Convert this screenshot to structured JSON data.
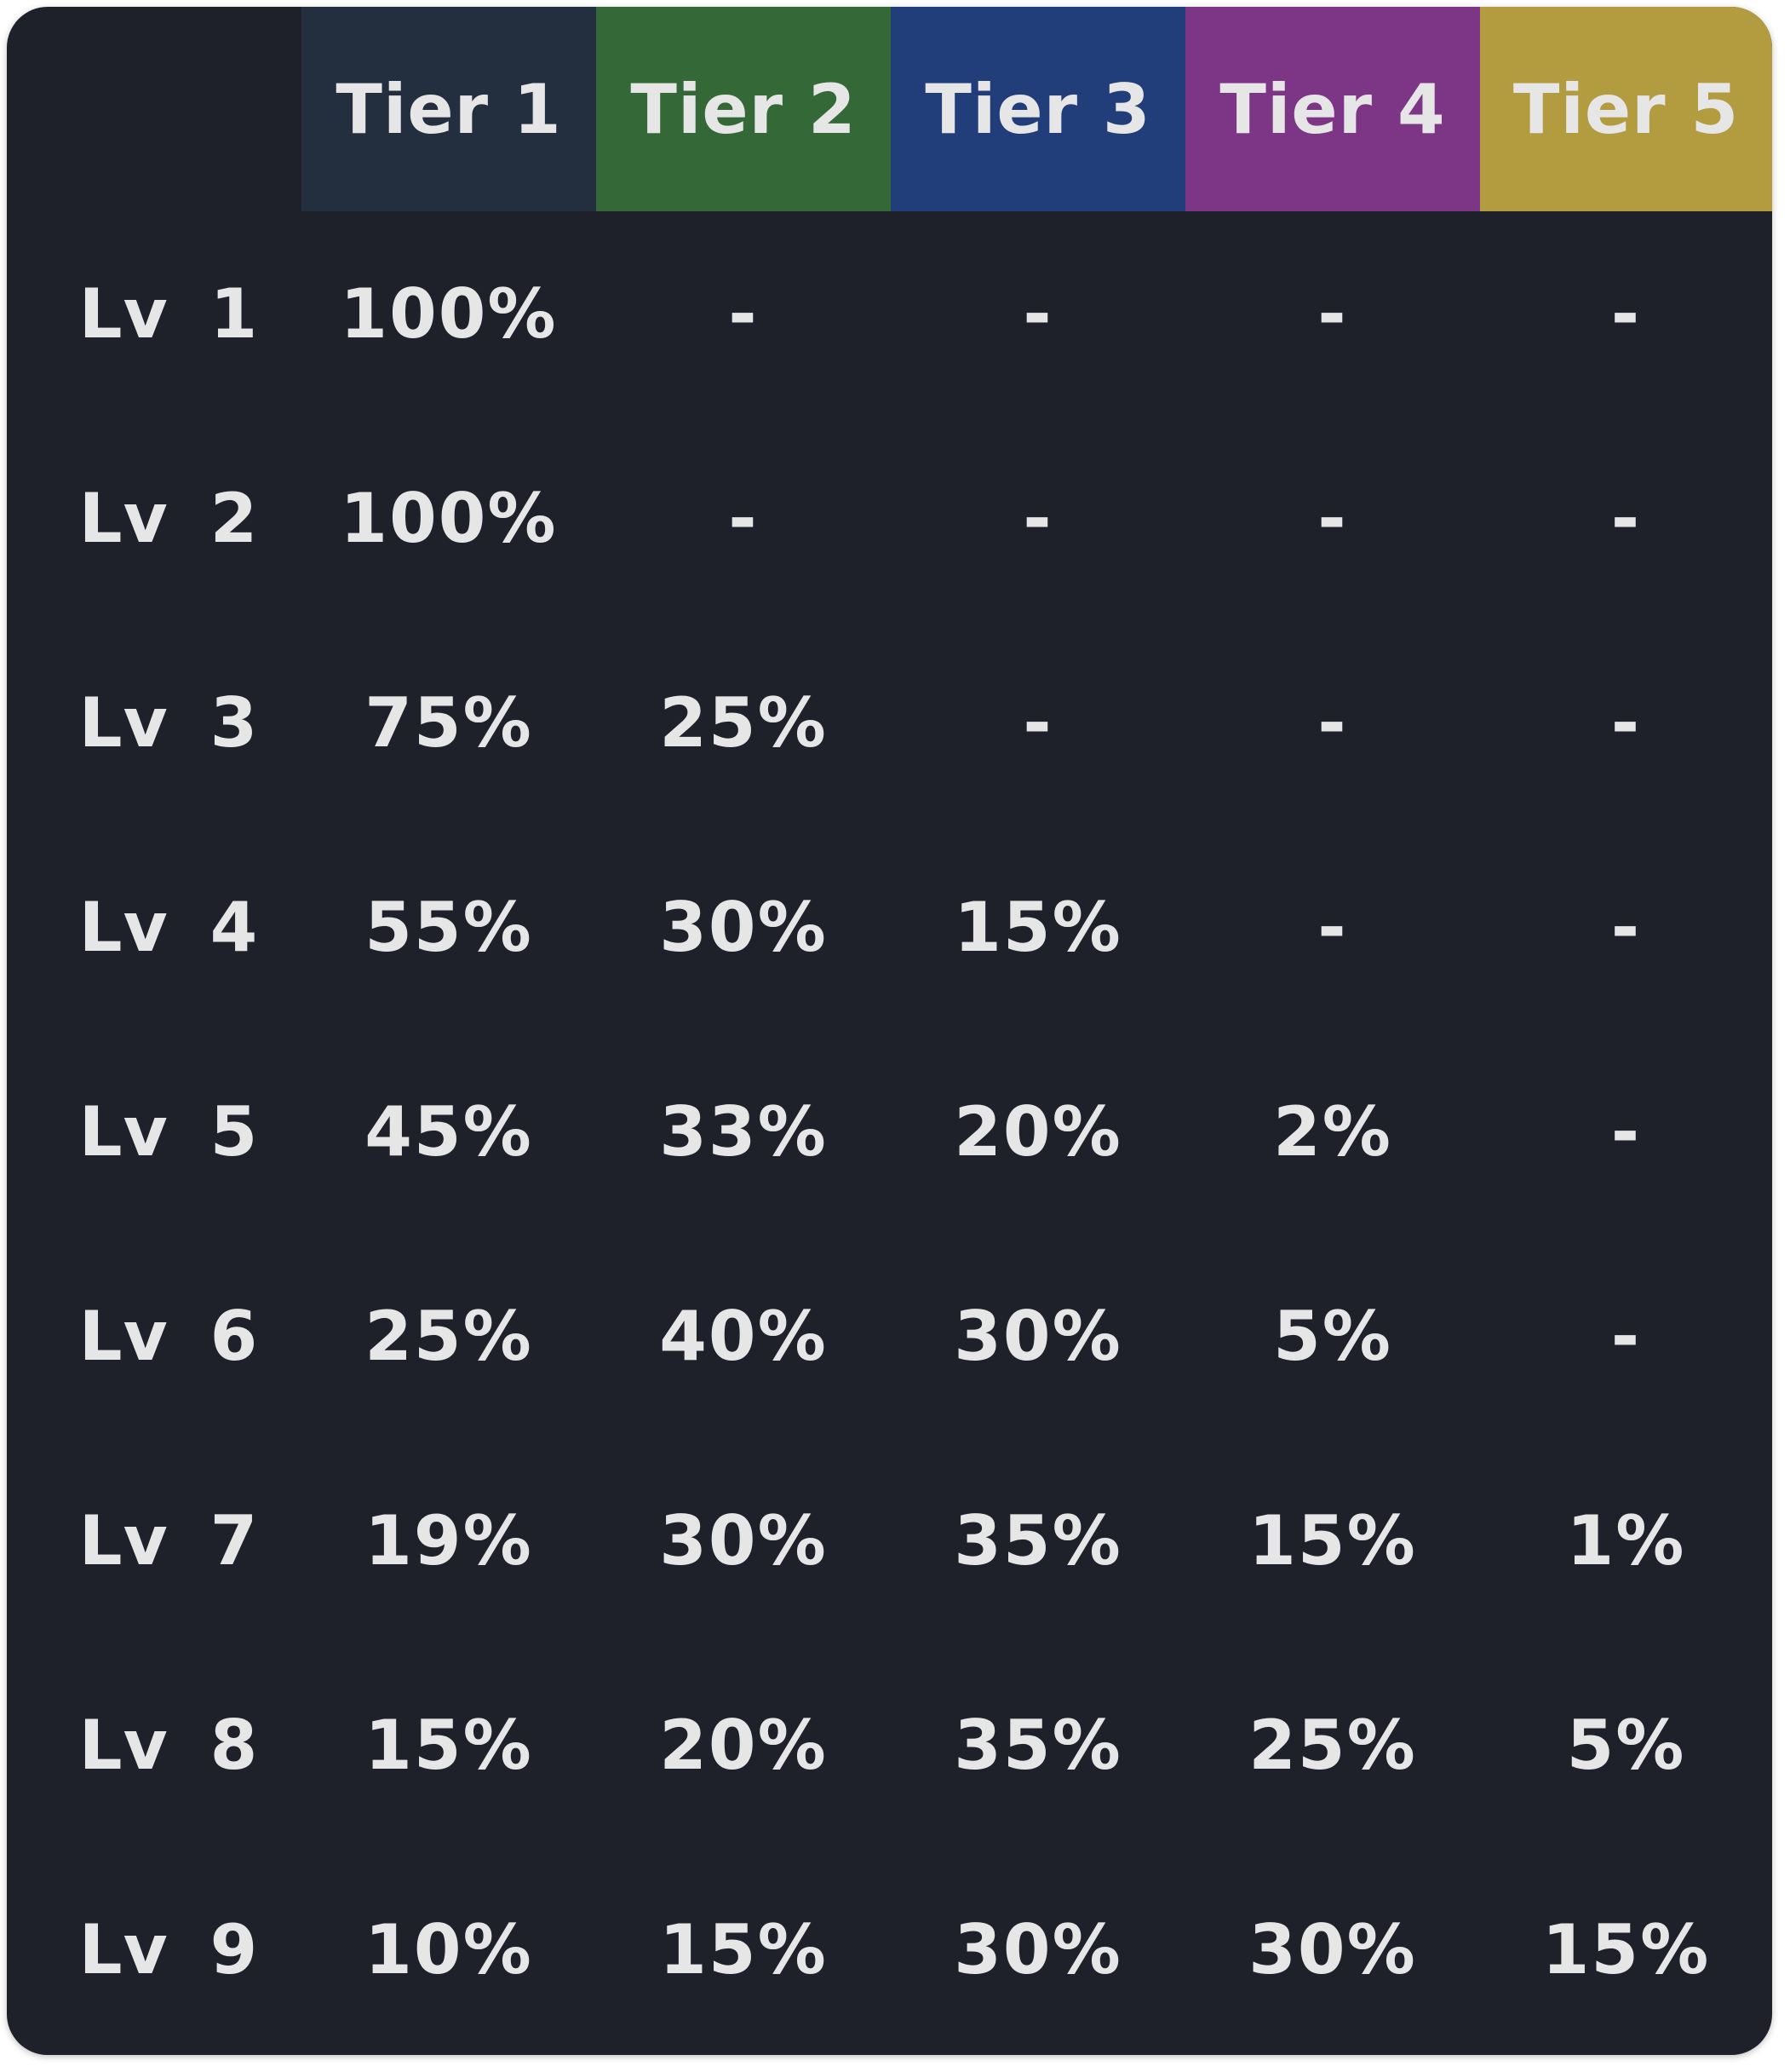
{
  "colors": {
    "background": "#1e202a",
    "tier1": "#232e3f",
    "tier2": "#346937",
    "tier3": "#223e7a",
    "tier4": "#7d3685",
    "tier5": "#b39c3f",
    "text": "#e6e6e6"
  },
  "table": {
    "headers": [
      "Tier 1",
      "Tier 2",
      "Tier 3",
      "Tier 4",
      "Tier 5"
    ],
    "rows": [
      {
        "level": "Lv 1",
        "cells": [
          "100%",
          "-",
          "-",
          "-",
          "-"
        ]
      },
      {
        "level": "Lv 2",
        "cells": [
          "100%",
          "-",
          "-",
          "-",
          "-"
        ]
      },
      {
        "level": "Lv 3",
        "cells": [
          "75%",
          "25%",
          "-",
          "-",
          "-"
        ]
      },
      {
        "level": "Lv 4",
        "cells": [
          "55%",
          "30%",
          "15%",
          "-",
          "-"
        ]
      },
      {
        "level": "Lv 5",
        "cells": [
          "45%",
          "33%",
          "20%",
          "2%",
          "-"
        ]
      },
      {
        "level": "Lv 6",
        "cells": [
          "25%",
          "40%",
          "30%",
          "5%",
          "-"
        ]
      },
      {
        "level": "Lv 7",
        "cells": [
          "19%",
          "30%",
          "35%",
          "15%",
          "1%"
        ]
      },
      {
        "level": "Lv 8",
        "cells": [
          "15%",
          "20%",
          "35%",
          "25%",
          "5%"
        ]
      },
      {
        "level": "Lv 9",
        "cells": [
          "10%",
          "15%",
          "30%",
          "30%",
          "15%"
        ]
      }
    ]
  }
}
